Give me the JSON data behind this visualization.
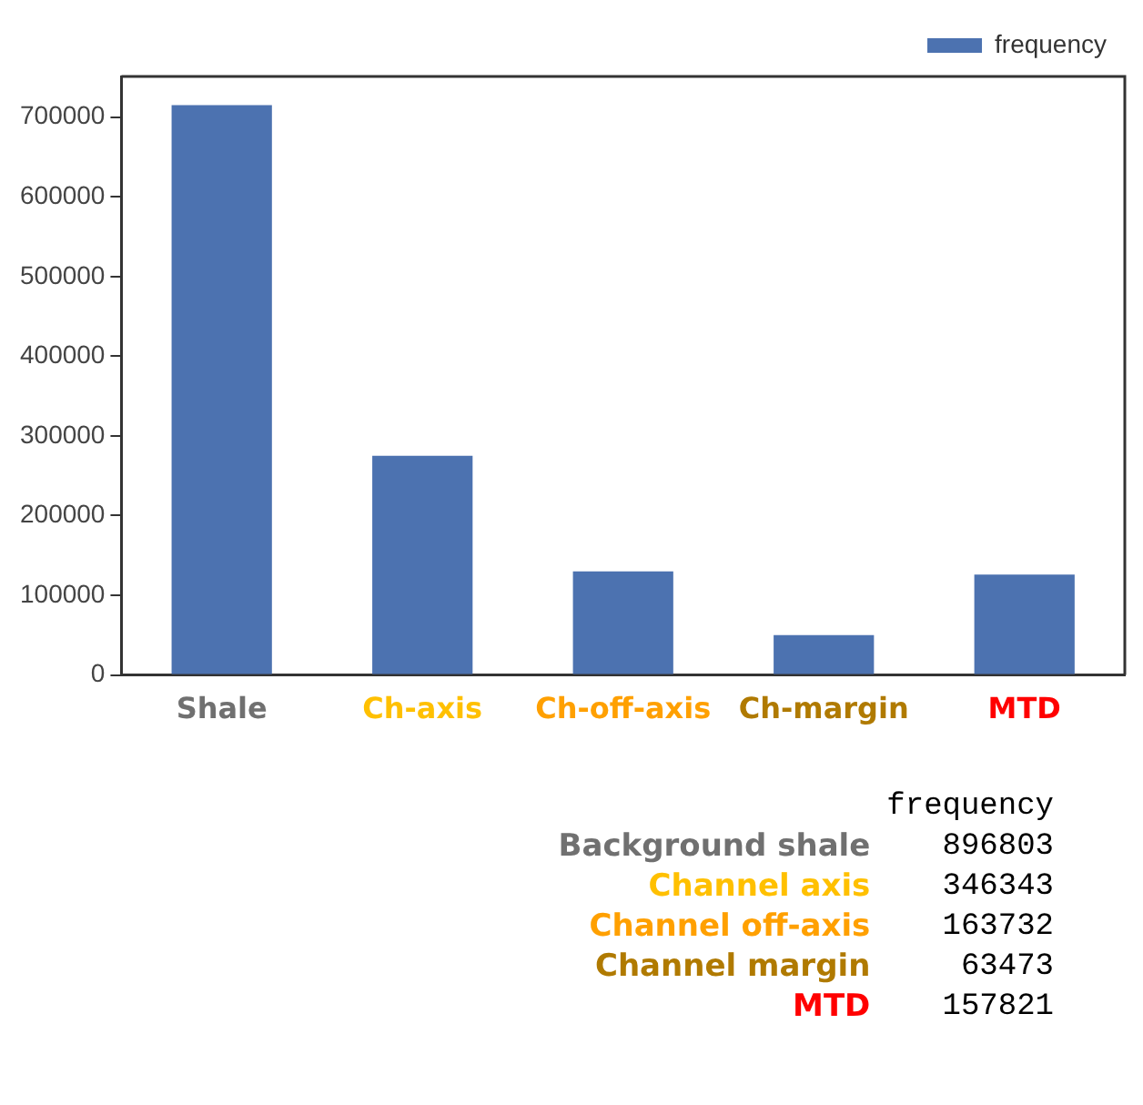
{
  "chart_data": {
    "type": "bar",
    "categories": [
      "Shale",
      "Ch-axis",
      "Ch-off-axis",
      "Ch-margin",
      "MTD"
    ],
    "series": [
      {
        "name": "frequency",
        "color": "#4c72b0",
        "values": [
          715000,
          275000,
          130000,
          50000,
          126000
        ]
      }
    ],
    "ylim": [
      0,
      751000
    ],
    "yticks": [
      0,
      100000,
      200000,
      300000,
      400000,
      500000,
      600000,
      700000
    ],
    "grid": false,
    "legend": "top right",
    "annotations": [
      "frequency",
      "Background shale",
      "896803",
      "Channel axis",
      "346343",
      "Channel off-axis",
      "163732",
      "Channel margin",
      "63473",
      "MTD",
      "157821"
    ]
  }
}
